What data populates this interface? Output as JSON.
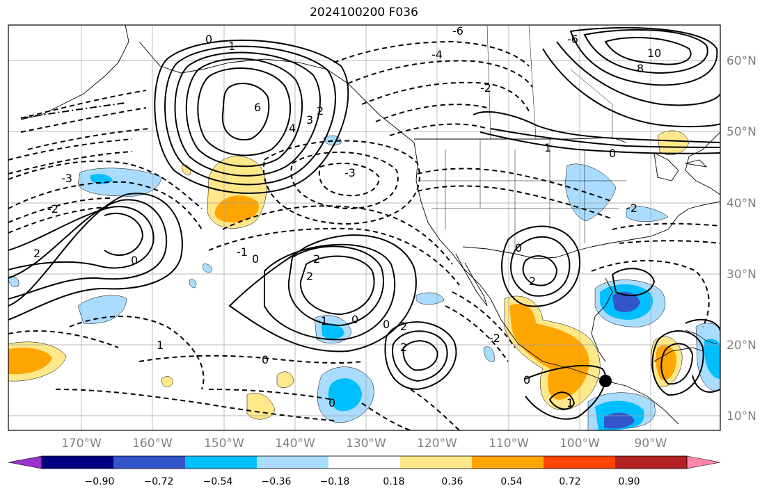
{
  "title": "2024100200 F036",
  "lon_labels": [
    "170°W",
    "160°W",
    "150°W",
    "140°W",
    "130°W",
    "120°W",
    "110°W",
    "100°W",
    "90°W"
  ],
  "lat_labels": [
    "60°N",
    "50°N",
    "40°N",
    "30°N",
    "20°N",
    "10°N"
  ],
  "colorbar": {
    "colors": [
      "#9933cc",
      "#000080",
      "#3355cc",
      "#00bfff",
      "#aadcff",
      "#ffffff",
      "#ffe88a",
      "#ffa500",
      "#ff4500",
      "#b22222",
      "#ff88aa"
    ],
    "labels": [
      "−0.90",
      "−0.72",
      "−0.54",
      "−0.36",
      "−0.18",
      "0.18",
      "0.36",
      "0.54",
      "0.72",
      "0.90"
    ]
  },
  "contour_labels": [
    {
      "text": "6"
    },
    {
      "text": "4"
    },
    {
      "text": "3"
    },
    {
      "text": "2"
    },
    {
      "text": "0"
    },
    {
      "text": "1"
    },
    {
      "text": "-3"
    },
    {
      "text": "-2"
    },
    {
      "text": "2"
    },
    {
      "text": "0"
    },
    {
      "text": "-1"
    },
    {
      "text": "0"
    },
    {
      "text": "-3"
    },
    {
      "text": "2"
    },
    {
      "text": "2"
    },
    {
      "text": "-1"
    },
    {
      "text": "0"
    },
    {
      "text": "2"
    },
    {
      "text": "2"
    },
    {
      "text": "0"
    },
    {
      "text": "-2"
    },
    {
      "text": "0"
    },
    {
      "text": "1"
    },
    {
      "text": "0"
    },
    {
      "text": "-6"
    },
    {
      "text": "-4"
    },
    {
      "text": "-2"
    },
    {
      "text": "-6"
    },
    {
      "text": "10"
    },
    {
      "text": "8"
    },
    {
      "text": "1"
    },
    {
      "text": "0"
    },
    {
      "text": "0"
    },
    {
      "text": "2"
    },
    {
      "text": "-2"
    },
    {
      "text": "0"
    },
    {
      "text": "1"
    }
  ],
  "marker": {
    "type": "filled-circle",
    "color": "#000000"
  }
}
